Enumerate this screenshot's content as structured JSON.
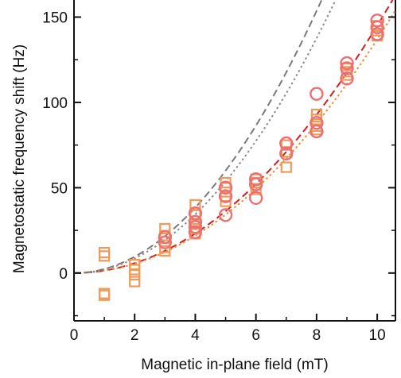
{
  "chart_data": {
    "type": "scatter",
    "title": "",
    "xlabel": "Magnetic in-plane field (mT)",
    "ylabel": "Magnetostatic frequency shift (Hz)",
    "xlim": [
      0,
      10.6
    ],
    "ylim": [
      -28,
      160
    ],
    "xticks": [
      0,
      2,
      4,
      6,
      8,
      10
    ],
    "yticks": [
      0,
      50,
      100,
      150
    ],
    "grid": false,
    "legend": "none",
    "colors": {
      "squares": "#ef9a5a",
      "circles": "#ec6f72",
      "fit_orange": "#ee8733",
      "fit_red": "#d01f1f",
      "fit_gray_dashed": "#7a7a7a",
      "fit_gray_dotted": "#8a8a8a"
    },
    "series": [
      {
        "marker": "square",
        "points": [
          [
            1,
            12
          ],
          [
            1,
            10
          ],
          [
            1,
            -12
          ],
          [
            1,
            -13
          ],
          [
            2,
            5
          ],
          [
            2,
            2
          ],
          [
            2,
            -1
          ],
          [
            2,
            -5
          ],
          [
            3,
            26
          ],
          [
            3,
            22
          ],
          [
            3,
            15
          ],
          [
            3,
            13
          ],
          [
            4,
            40
          ],
          [
            4,
            34
          ],
          [
            4,
            29
          ],
          [
            4,
            26
          ],
          [
            4,
            23
          ],
          [
            5,
            53
          ],
          [
            5,
            50
          ],
          [
            5,
            45
          ],
          [
            5,
            42
          ],
          [
            6,
            55
          ],
          [
            6,
            53
          ],
          [
            6,
            49
          ],
          [
            7,
            75
          ],
          [
            7,
            71
          ],
          [
            7,
            62
          ],
          [
            8,
            93
          ],
          [
            8,
            90
          ],
          [
            8,
            86
          ],
          [
            8,
            84
          ],
          [
            9,
            118
          ],
          [
            9,
            116
          ],
          [
            9,
            120
          ],
          [
            10,
            145
          ],
          [
            10,
            142
          ],
          [
            10,
            139
          ]
        ]
      },
      {
        "marker": "circle",
        "points": [
          [
            3,
            21
          ],
          [
            3,
            18
          ],
          [
            4,
            35
          ],
          [
            4,
            30
          ],
          [
            4,
            27
          ],
          [
            4,
            24
          ],
          [
            5,
            50
          ],
          [
            5,
            45
          ],
          [
            5,
            34
          ],
          [
            6,
            55
          ],
          [
            6,
            52
          ],
          [
            6,
            44
          ],
          [
            7,
            76
          ],
          [
            7,
            70
          ],
          [
            8,
            105
          ],
          [
            8,
            88
          ],
          [
            8,
            83
          ],
          [
            9,
            123
          ],
          [
            9,
            120
          ],
          [
            9,
            114
          ],
          [
            10,
            148
          ],
          [
            10,
            144
          ],
          [
            10,
            140
          ]
        ]
      }
    ],
    "fits": [
      {
        "style": "dashed",
        "color_key": "fit_red",
        "coefficient": 1.45
      },
      {
        "style": "dotted",
        "color_key": "fit_orange",
        "coefficient": 1.37
      },
      {
        "style": "dashed",
        "color_key": "fit_gray_dashed",
        "coefficient": 2.4
      },
      {
        "style": "dotted",
        "color_key": "fit_gray_dotted",
        "coefficient": 2.15
      }
    ]
  }
}
